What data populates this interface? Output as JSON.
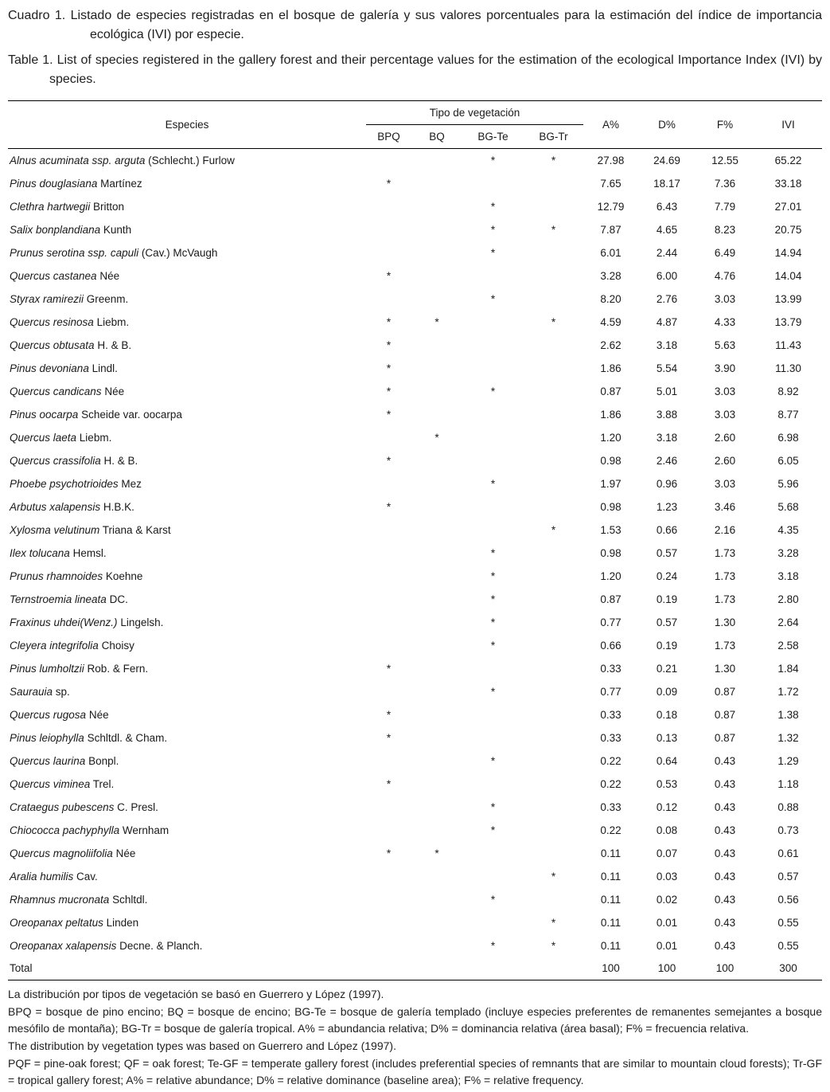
{
  "captions": {
    "es": "Cuadro 1. Listado de especies registradas en el bosque de galería y sus valores porcentuales para la estimación del índice de importancia ecológica (IVI) por especie.",
    "en": "Table 1. List of species registered in the gallery forest and their percentage values for the estimation of the ecological Importance Index (IVI) by species."
  },
  "table": {
    "headers": {
      "especies": "Especies",
      "tipo": "Tipo de vegetación",
      "bpq": "BPQ",
      "bq": "BQ",
      "bgte": "BG-Te",
      "bgtr": "BG-Tr",
      "a": "A%",
      "d": "D%",
      "f": "F%",
      "ivi": "IVI"
    },
    "rows": [
      {
        "sci": "Alnus acuminata ssp. arguta",
        "auth": "(Schlecht.) Furlow",
        "bpq": "",
        "bq": "",
        "bgte": "*",
        "bgtr": "*",
        "a": "27.98",
        "d": "24.69",
        "f": "12.55",
        "ivi": "65.22"
      },
      {
        "sci": "Pinus douglasiana",
        "auth": "Martínez",
        "bpq": "*",
        "bq": "",
        "bgte": "",
        "bgtr": "",
        "a": "7.65",
        "d": "18.17",
        "f": "7.36",
        "ivi": "33.18"
      },
      {
        "sci": "Clethra hartwegii",
        "auth": "Britton",
        "bpq": "",
        "bq": "",
        "bgte": "*",
        "bgtr": "",
        "a": "12.79",
        "d": "6.43",
        "f": "7.79",
        "ivi": "27.01"
      },
      {
        "sci": "Salix bonplandiana",
        "auth": "Kunth",
        "bpq": "",
        "bq": "",
        "bgte": "*",
        "bgtr": "*",
        "a": "7.87",
        "d": "4.65",
        "f": "8.23",
        "ivi": "20.75"
      },
      {
        "sci": "Prunus serotina ssp. capuli",
        "auth": "(Cav.) McVaugh",
        "bpq": "",
        "bq": "",
        "bgte": "*",
        "bgtr": "",
        "a": "6.01",
        "d": "2.44",
        "f": "6.49",
        "ivi": "14.94"
      },
      {
        "sci": "Quercus castanea",
        "auth": "Née",
        "bpq": "*",
        "bq": "",
        "bgte": "",
        "bgtr": "",
        "a": "3.28",
        "d": "6.00",
        "f": "4.76",
        "ivi": "14.04"
      },
      {
        "sci": "Styrax ramirezii",
        "auth": "Greenm.",
        "bpq": "",
        "bq": "",
        "bgte": "*",
        "bgtr": "",
        "a": "8.20",
        "d": "2.76",
        "f": "3.03",
        "ivi": "13.99"
      },
      {
        "sci": "Quercus resinosa",
        "auth": "Liebm.",
        "bpq": "*",
        "bq": "*",
        "bgte": "",
        "bgtr": "*",
        "a": "4.59",
        "d": "4.87",
        "f": "4.33",
        "ivi": "13.79"
      },
      {
        "sci": "Quercus obtusata",
        "auth": "H. & B.",
        "bpq": "*",
        "bq": "",
        "bgte": "",
        "bgtr": "",
        "a": "2.62",
        "d": "3.18",
        "f": "5.63",
        "ivi": "11.43"
      },
      {
        "sci": "Pinus devoniana",
        "auth": "Lindl.",
        "bpq": "*",
        "bq": "",
        "bgte": "",
        "bgtr": "",
        "a": "1.86",
        "d": "5.54",
        "f": "3.90",
        "ivi": "11.30"
      },
      {
        "sci": "Quercus candicans",
        "auth": "Née",
        "bpq": "*",
        "bq": "",
        "bgte": "*",
        "bgtr": "",
        "a": "0.87",
        "d": "5.01",
        "f": "3.03",
        "ivi": "8.92"
      },
      {
        "sci": "Pinus oocarpa",
        "auth": "Scheide var. oocarpa",
        "bpq": "*",
        "bq": "",
        "bgte": "",
        "bgtr": "",
        "a": "1.86",
        "d": "3.88",
        "f": "3.03",
        "ivi": "8.77"
      },
      {
        "sci": "Quercus laeta",
        "auth": "Liebm.",
        "bpq": "",
        "bq": "*",
        "bgte": "",
        "bgtr": "",
        "a": "1.20",
        "d": "3.18",
        "f": "2.60",
        "ivi": "6.98"
      },
      {
        "sci": "Quercus crassifolia",
        "auth": "H. & B.",
        "bpq": "*",
        "bq": "",
        "bgte": "",
        "bgtr": "",
        "a": "0.98",
        "d": "2.46",
        "f": "2.60",
        "ivi": "6.05"
      },
      {
        "sci": "Phoebe psychotrioides",
        "auth": "Mez",
        "bpq": "",
        "bq": "",
        "bgte": "*",
        "bgtr": "",
        "a": "1.97",
        "d": "0.96",
        "f": "3.03",
        "ivi": "5.96"
      },
      {
        "sci": "Arbutus xalapensis",
        "auth": "H.B.K.",
        "bpq": "*",
        "bq": "",
        "bgte": "",
        "bgtr": "",
        "a": "0.98",
        "d": "1.23",
        "f": "3.46",
        "ivi": "5.68"
      },
      {
        "sci": "Xylosma velutinum",
        "auth": "Triana & Karst",
        "bpq": "",
        "bq": "",
        "bgte": "",
        "bgtr": "*",
        "a": "1.53",
        "d": "0.66",
        "f": "2.16",
        "ivi": "4.35"
      },
      {
        "sci": "Ilex tolucana",
        "auth": "Hemsl.",
        "bpq": "",
        "bq": "",
        "bgte": "*",
        "bgtr": "",
        "a": "0.98",
        "d": "0.57",
        "f": "1.73",
        "ivi": "3.28"
      },
      {
        "sci": "Prunus rhamnoides",
        "auth": "Koehne",
        "bpq": "",
        "bq": "",
        "bgte": "*",
        "bgtr": "",
        "a": "1.20",
        "d": "0.24",
        "f": "1.73",
        "ivi": "3.18"
      },
      {
        "sci": "Ternstroemia lineata",
        "auth": "DC.",
        "bpq": "",
        "bq": "",
        "bgte": "*",
        "bgtr": "",
        "a": "0.87",
        "d": "0.19",
        "f": "1.73",
        "ivi": "2.80"
      },
      {
        "sci": "Fraxinus uhdei(Wenz.)",
        "auth": "Lingelsh.",
        "bpq": "",
        "bq": "",
        "bgte": "*",
        "bgtr": "",
        "a": "0.77",
        "d": "0.57",
        "f": "1.30",
        "ivi": "2.64"
      },
      {
        "sci": "Cleyera integrifolia",
        "auth": "Choisy",
        "bpq": "",
        "bq": "",
        "bgte": "*",
        "bgtr": "",
        "a": "0.66",
        "d": "0.19",
        "f": "1.73",
        "ivi": "2.58"
      },
      {
        "sci": "Pinus lumholtzii",
        "auth": "Rob. & Fern.",
        "bpq": "*",
        "bq": "",
        "bgte": "",
        "bgtr": "",
        "a": "0.33",
        "d": "0.21",
        "f": "1.30",
        "ivi": "1.84"
      },
      {
        "sci": "Saurauia",
        "auth": "sp.",
        "bpq": "",
        "bq": "",
        "bgte": "*",
        "bgtr": "",
        "a": "0.77",
        "d": "0.09",
        "f": "0.87",
        "ivi": "1.72"
      },
      {
        "sci": "Quercus rugosa",
        "auth": "Née",
        "bpq": "*",
        "bq": "",
        "bgte": "",
        "bgtr": "",
        "a": "0.33",
        "d": "0.18",
        "f": "0.87",
        "ivi": "1.38"
      },
      {
        "sci": "Pinus leiophylla",
        "auth": "Schltdl. & Cham.",
        "bpq": "*",
        "bq": "",
        "bgte": "",
        "bgtr": "",
        "a": "0.33",
        "d": "0.13",
        "f": "0.87",
        "ivi": "1.32"
      },
      {
        "sci": "Quercus laurina",
        "auth": "Bonpl.",
        "bpq": "",
        "bq": "",
        "bgte": "*",
        "bgtr": "",
        "a": "0.22",
        "d": "0.64",
        "f": "0.43",
        "ivi": "1.29"
      },
      {
        "sci": "Quercus viminea",
        "auth": "Trel.",
        "bpq": "*",
        "bq": "",
        "bgte": "",
        "bgtr": "",
        "a": "0.22",
        "d": "0.53",
        "f": "0.43",
        "ivi": "1.18"
      },
      {
        "sci": "Crataegus pubescens",
        "auth": "C. Presl.",
        "bpq": "",
        "bq": "",
        "bgte": "*",
        "bgtr": "",
        "a": "0.33",
        "d": "0.12",
        "f": "0.43",
        "ivi": "0.88"
      },
      {
        "sci": "Chiococca pachyphylla",
        "auth": "Wernham",
        "bpq": "",
        "bq": "",
        "bgte": "*",
        "bgtr": "",
        "a": "0.22",
        "d": "0.08",
        "f": "0.43",
        "ivi": "0.73"
      },
      {
        "sci": "Quercus magnoliifolia",
        "auth": "Née",
        "bpq": "*",
        "bq": "*",
        "bgte": "",
        "bgtr": "",
        "a": "0.11",
        "d": "0.07",
        "f": "0.43",
        "ivi": "0.61"
      },
      {
        "sci": "Aralia humilis",
        "auth": "Cav.",
        "bpq": "",
        "bq": "",
        "bgte": "",
        "bgtr": "*",
        "a": "0.11",
        "d": "0.03",
        "f": "0.43",
        "ivi": "0.57"
      },
      {
        "sci": "Rhamnus mucronata",
        "auth": "Schltdl.",
        "bpq": "",
        "bq": "",
        "bgte": "*",
        "bgtr": "",
        "a": "0.11",
        "d": "0.02",
        "f": "0.43",
        "ivi": "0.56"
      },
      {
        "sci": "Oreopanax peltatus",
        "auth": "Linden",
        "bpq": "",
        "bq": "",
        "bgte": "",
        "bgtr": "*",
        "a": "0.11",
        "d": "0.01",
        "f": "0.43",
        "ivi": "0.55"
      },
      {
        "sci": "Oreopanax xalapensis",
        "auth": "Decne. & Planch.",
        "bpq": "",
        "bq": "",
        "bgte": "*",
        "bgtr": "*",
        "a": "0.11",
        "d": "0.01",
        "f": "0.43",
        "ivi": "0.55"
      }
    ],
    "total": {
      "label": "Total",
      "a": "100",
      "d": "100",
      "f": "100",
      "ivi": "300"
    }
  },
  "footnotes": [
    "La distribución por tipos de vegetación se basó en Guerrero y López (1997).",
    "BPQ = bosque de pino encino; BQ = bosque de encino; BG-Te = bosque de galería templado (incluye especies preferentes de remanentes semejantes a bosque mesófilo de montaña); BG-Tr = bosque de galería tropical. A% = abundancia relativa; D% = dominancia relativa (área basal); F% = frecuencia relativa.",
    "The distribution by vegetation types was based on Guerrero and López (1997).",
    "PQF = pine-oak forest; QF = oak forest; Te-GF = temperate gallery forest (includes preferential species of remnants that are similar to mountain cloud forests); Tr-GF = tropical gallery forest; A% = relative abundance; D% = relative dominance (baseline area); F% = relative frequency."
  ]
}
